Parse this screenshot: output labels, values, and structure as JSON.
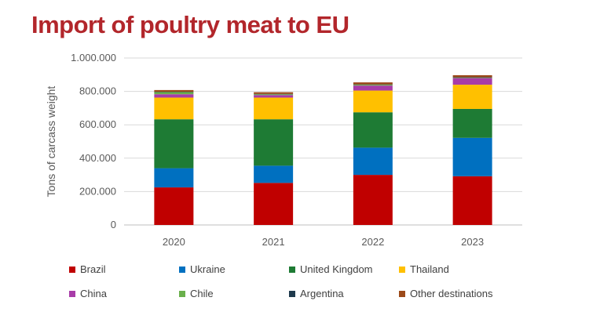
{
  "title": "Import of poultry meat to EU",
  "chart_data": {
    "type": "bar",
    "stacked": true,
    "title": "Import of poultry meat to EU",
    "xlabel": "",
    "ylabel": "Tons of carcass weight",
    "ylim": [
      0,
      1000000
    ],
    "yticks": [
      "0",
      "200.000",
      "400.000",
      "600.000",
      "800.000",
      "1.000.000"
    ],
    "ytick_values": [
      0,
      200000,
      400000,
      600000,
      800000,
      1000000
    ],
    "grid": true,
    "legend_position": "bottom",
    "categories": [
      "2020",
      "2021",
      "2022",
      "2023"
    ],
    "series": [
      {
        "name": "Brazil",
        "color": "#c00000",
        "values": [
          225000,
          252000,
          300000,
          292000
        ]
      },
      {
        "name": "Ukraine",
        "color": "#0070c0",
        "values": [
          115000,
          103000,
          163000,
          230000
        ]
      },
      {
        "name": "United Kingdom",
        "color": "#1e7b34",
        "values": [
          293000,
          278000,
          212000,
          173000
        ]
      },
      {
        "name": "Thailand",
        "color": "#ffc000",
        "values": [
          130000,
          130000,
          130000,
          145000
        ]
      },
      {
        "name": "China",
        "color": "#a83ca8",
        "values": [
          20000,
          15000,
          30000,
          40000
        ]
      },
      {
        "name": "Chile",
        "color": "#6ab04c",
        "values": [
          13000,
          5000,
          5000,
          3000
        ]
      },
      {
        "name": "Argentina",
        "color": "#1f3a4d",
        "values": [
          2000,
          2000,
          2000,
          2000
        ]
      },
      {
        "name": "Other destinations",
        "color": "#9c4a1a",
        "values": [
          10000,
          10000,
          12000,
          12000
        ]
      }
    ]
  }
}
